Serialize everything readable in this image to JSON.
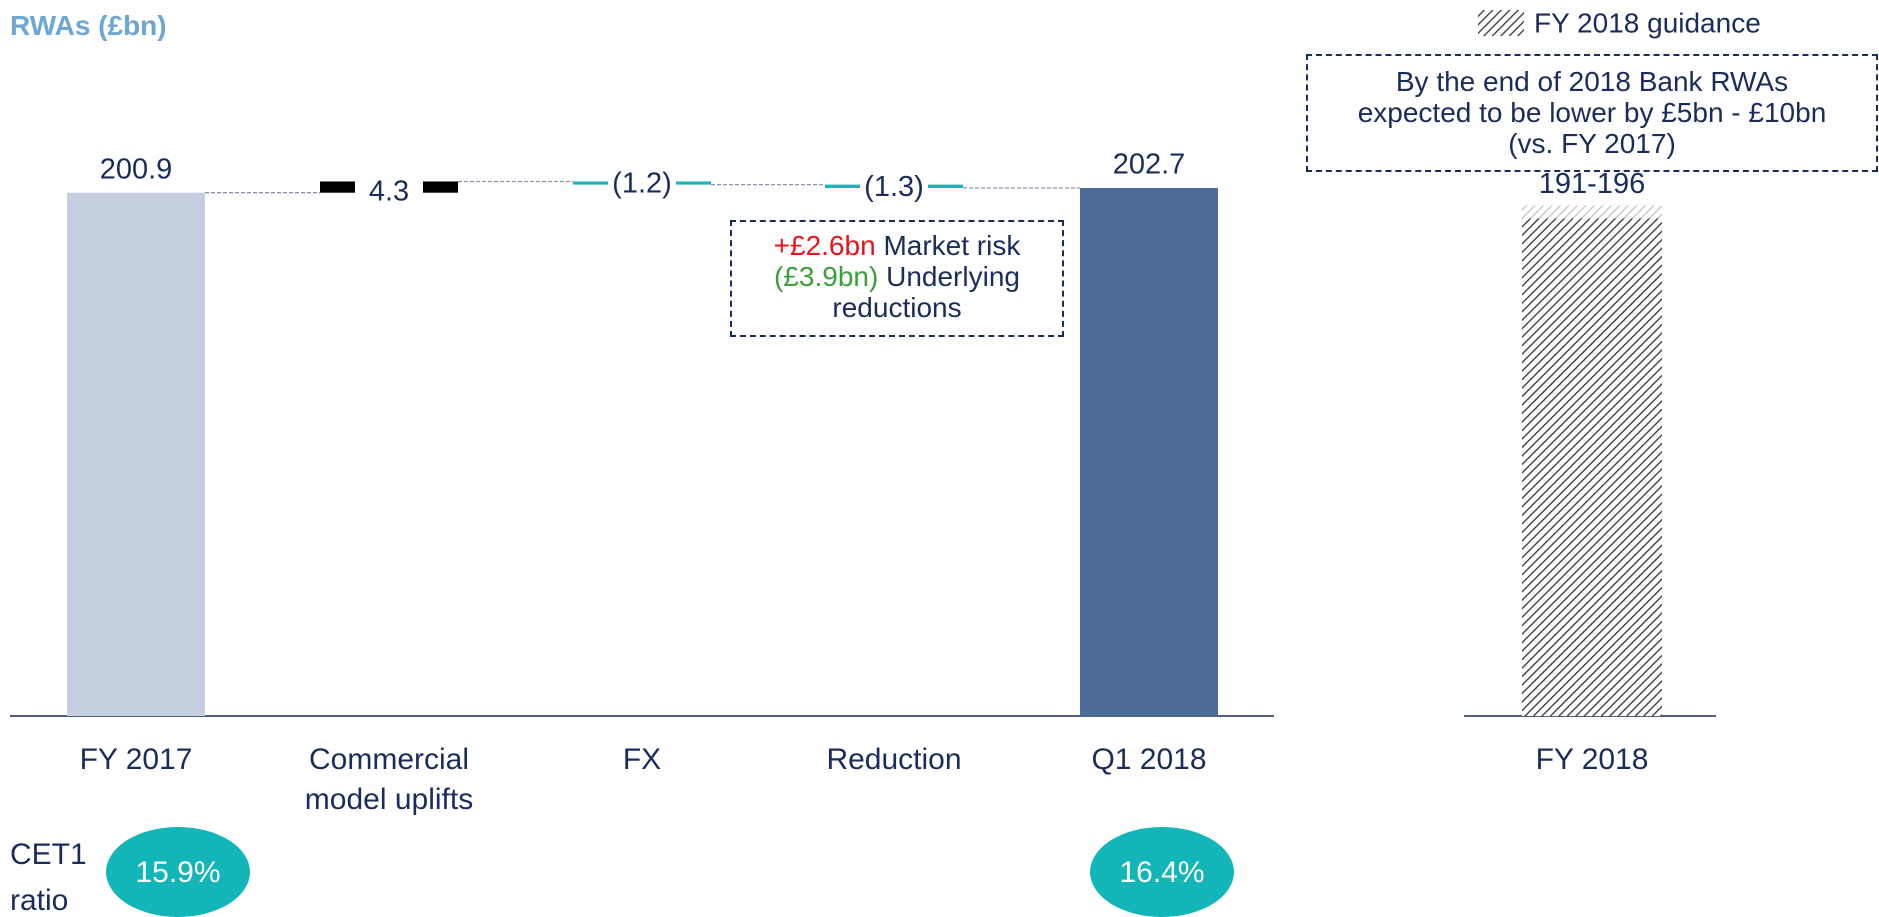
{
  "chart_data": {
    "type": "waterfall",
    "title": "RWAs (£bn)",
    "categories": [
      "FY 2017",
      "Commercial model uplifts",
      "FX",
      "Reduction",
      "Q1 2018"
    ],
    "values": [
      200.9,
      4.3,
      -1.2,
      -1.3,
      202.7
    ],
    "value_labels": [
      "200.9",
      "4.3",
      "(1.2)",
      "(1.3)",
      "202.7"
    ],
    "measure": [
      "total",
      "relative",
      "relative",
      "relative",
      "total"
    ],
    "colors": [
      "#c5cfe0",
      "#000000",
      "#1ab5b8",
      "#1ab5b8",
      "#4d6b99"
    ],
    "annotation": [
      {
        "amount": "+£2.6bn",
        "text": "Market risk",
        "color": "#e8141b"
      },
      {
        "amount": "(£3.9bn)",
        "text": "Underlying reductions",
        "color": "#3aa03a"
      }
    ],
    "guidance": {
      "category": "FY 2018",
      "low": 191,
      "high": 196,
      "value_label": "191-196",
      "legend": "FY 2018 guidance",
      "note": [
        "By the end of 2018  Bank RWAs",
        "expected to be lower by £5bn - £10bn",
        "(vs. FY 2017)"
      ]
    },
    "cet1": {
      "label": [
        "CET1",
        "ratio"
      ],
      "values": [
        "15.9%",
        "16.4%"
      ],
      "color": "#12b5b8"
    }
  }
}
